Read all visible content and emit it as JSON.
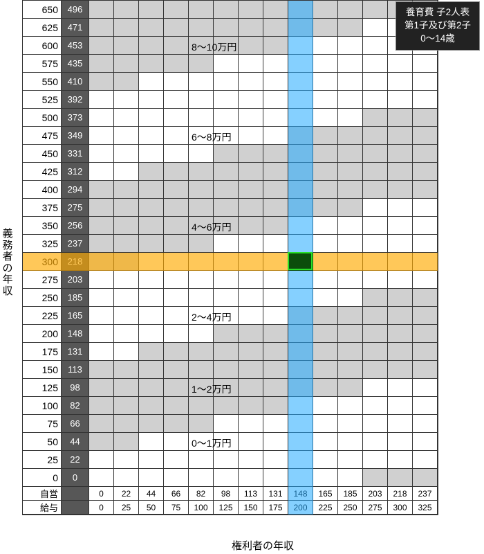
{
  "axis": {
    "ylabel": "義務者の年収",
    "xlabel": "権利者の年収",
    "bottomRowLabels": [
      "自営",
      "給与"
    ]
  },
  "legend": {
    "line1": "養育費 子2人表",
    "line2": "第1子及び第2子",
    "line3": "0〜14歳"
  },
  "layout": {
    "rowLabelWidth": 56,
    "seWidth": 40,
    "cellWidth": 36,
    "cellHeight": 26,
    "bottomRowHeight": 20,
    "gridLeft": 32
  },
  "colors": {
    "bandA": "#d0d0d0",
    "bandB": "#ffffff",
    "rowHighlight": "#ffaa00",
    "colHighlight": "#21a9ff",
    "cross": "#0b4d0b",
    "crossBorder": "#28e028",
    "gridLine": "#333333",
    "seCol": "#575757",
    "legendBg": "#222222"
  },
  "rows": [
    {
      "label": "650",
      "se": "496",
      "band": 5
    },
    {
      "label": "625",
      "se": "471",
      "band": 5
    },
    {
      "label": "600",
      "se": "453",
      "band": 5
    },
    {
      "label": "575",
      "se": "435",
      "band": 5
    },
    {
      "label": "550",
      "se": "410",
      "band": 5
    },
    {
      "label": "525",
      "se": "392",
      "band": 5
    },
    {
      "label": "500",
      "se": "373",
      "band": 4
    },
    {
      "label": "475",
      "se": "349",
      "band": 4
    },
    {
      "label": "450",
      "se": "331",
      "band": 4
    },
    {
      "label": "425",
      "se": "312",
      "band": 4
    },
    {
      "label": "400",
      "se": "294",
      "band": 4
    },
    {
      "label": "375",
      "se": "275",
      "band": 3
    },
    {
      "label": "350",
      "se": "256",
      "band": 3
    },
    {
      "label": "325",
      "se": "237",
      "band": 3
    },
    {
      "label": "300",
      "se": "218",
      "band": 3
    },
    {
      "label": "275",
      "se": "203",
      "band": 3
    },
    {
      "label": "250",
      "se": "185",
      "band": 2
    },
    {
      "label": "225",
      "se": "165",
      "band": 2
    },
    {
      "label": "200",
      "se": "148",
      "band": 2
    },
    {
      "label": "175",
      "se": "131",
      "band": 2
    },
    {
      "label": "150",
      "se": "113",
      "band": 2
    },
    {
      "label": "125",
      "se": "98",
      "band": 1
    },
    {
      "label": "100",
      "se": "82",
      "band": 1
    },
    {
      "label": "75",
      "se": "66",
      "band": 1
    },
    {
      "label": "50",
      "se": "44",
      "band": 0
    },
    {
      "label": "25",
      "se": "22",
      "band": 0
    },
    {
      "label": "0",
      "se": "0",
      "band": 0
    }
  ],
  "cols": {
    "seLabels": [
      "0",
      "22",
      "44",
      "66",
      "82",
      "98",
      "113",
      "131",
      "148",
      "165",
      "185",
      "203",
      "218",
      "237"
    ],
    "salaryLabels": [
      "0",
      "25",
      "50",
      "75",
      "100",
      "125",
      "150",
      "175",
      "200",
      "225",
      "250",
      "275",
      "300",
      "325"
    ]
  },
  "bandShift": [
    -1,
    -1,
    -1,
    -1,
    -1,
    -1,
    -1,
    -1,
    -1,
    -1,
    -2,
    -2,
    -2,
    -2,
    -2,
    -2,
    -2,
    -2
  ],
  "stairShape": [
    [
      0,
      1,
      0,
      0,
      0,
      0,
      0,
      0,
      0,
      0,
      0,
      0,
      0,
      0,
      0,
      0
    ],
    [
      0,
      0,
      1,
      1,
      0,
      0,
      0,
      0,
      0,
      0,
      0,
      0,
      0,
      0,
      0,
      0
    ],
    [
      0,
      0,
      0,
      0,
      1,
      1,
      1,
      1,
      0,
      0,
      0,
      0,
      0,
      0,
      0,
      0
    ],
    [
      0,
      0,
      0,
      0,
      0,
      0,
      0,
      0,
      1,
      1,
      0,
      0,
      0,
      0,
      0,
      0
    ],
    [
      0,
      0,
      0,
      0,
      0,
      0,
      0,
      0,
      0,
      0,
      1,
      1,
      1,
      1,
      1,
      1
    ]
  ],
  "bandLabels": [
    {
      "text": "8～10万円"
    },
    {
      "text": "6～8万円"
    },
    {
      "text": "4～6万円"
    },
    {
      "text": "2～4万円"
    },
    {
      "text": "1～2万円"
    },
    {
      "text": "0～1万円"
    }
  ],
  "highlight": {
    "rowIndex": 14,
    "colIndex": 8
  }
}
